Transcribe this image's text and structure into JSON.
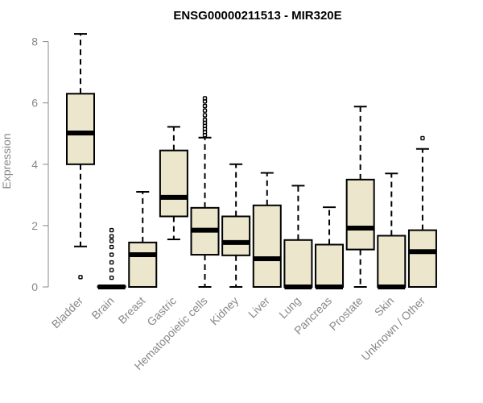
{
  "chart_data": {
    "type": "boxplot",
    "title": "ENSG00000211513 - MIR320E",
    "xlabel": "",
    "ylabel": "Expression",
    "ylim": [
      0,
      8.3
    ],
    "yticks": [
      0,
      2,
      4,
      6,
      8
    ],
    "grid": false,
    "categories": [
      "Bladder",
      "Brain",
      "Breast",
      "Gastric",
      "Hematopoietic cells",
      "Kidney",
      "Liver",
      "Lung",
      "Pancreas",
      "Prostate",
      "Skin",
      "Unknown / Other"
    ],
    "series": [
      {
        "name": "Bladder",
        "whisker_low": 1.32,
        "q1": 4.0,
        "median": 5.02,
        "q3": 6.3,
        "whisker_high": 8.25,
        "outliers": [
          0.32
        ]
      },
      {
        "name": "Brain",
        "whisker_low": 0.0,
        "q1": 0.0,
        "median": 0.0,
        "q3": 0.02,
        "whisker_high": 0.02,
        "outliers": [
          0.3,
          0.55,
          0.8,
          1.05,
          1.3,
          1.5,
          1.65,
          1.85
        ]
      },
      {
        "name": "Breast",
        "whisker_low": 0.0,
        "q1": 0.0,
        "median": 1.05,
        "q3": 1.45,
        "whisker_high": 3.1,
        "outliers": []
      },
      {
        "name": "Gastric",
        "whisker_low": 1.55,
        "q1": 2.3,
        "median": 2.92,
        "q3": 4.45,
        "whisker_high": 5.22,
        "outliers": []
      },
      {
        "name": "Hematopoietic cells",
        "whisker_low": 0.0,
        "q1": 1.05,
        "median": 1.85,
        "q3": 2.58,
        "whisker_high": 4.87,
        "outliers": [
          4.95,
          5.05,
          5.15,
          5.25,
          5.35,
          5.45,
          5.6,
          5.75,
          5.9,
          6.05,
          6.15
        ]
      },
      {
        "name": "Kidney",
        "whisker_low": 0.0,
        "q1": 1.03,
        "median": 1.45,
        "q3": 2.3,
        "whisker_high": 4.0,
        "outliers": []
      },
      {
        "name": "Liver",
        "whisker_low": 0.0,
        "q1": 0.0,
        "median": 0.92,
        "q3": 2.66,
        "whisker_high": 3.72,
        "outliers": []
      },
      {
        "name": "Lung",
        "whisker_low": 0.0,
        "q1": 0.0,
        "median": 0.0,
        "q3": 1.53,
        "whisker_high": 3.3,
        "outliers": []
      },
      {
        "name": "Pancreas",
        "whisker_low": 0.0,
        "q1": 0.0,
        "median": 0.0,
        "q3": 1.38,
        "whisker_high": 2.6,
        "outliers": []
      },
      {
        "name": "Prostate",
        "whisker_low": 0.0,
        "q1": 1.22,
        "median": 1.92,
        "q3": 3.5,
        "whisker_high": 5.88,
        "outliers": []
      },
      {
        "name": "Skin",
        "whisker_low": 0.0,
        "q1": 0.0,
        "median": 0.0,
        "q3": 1.67,
        "whisker_high": 3.7,
        "outliers": []
      },
      {
        "name": "Unknown / Other",
        "whisker_low": 0.0,
        "q1": 0.0,
        "median": 1.15,
        "q3": 1.85,
        "whisker_high": 4.5,
        "outliers": [
          4.85
        ]
      }
    ],
    "colors": {
      "box_fill": "#ece6cc",
      "stroke": "#000000",
      "axis_text": "#888888"
    }
  }
}
